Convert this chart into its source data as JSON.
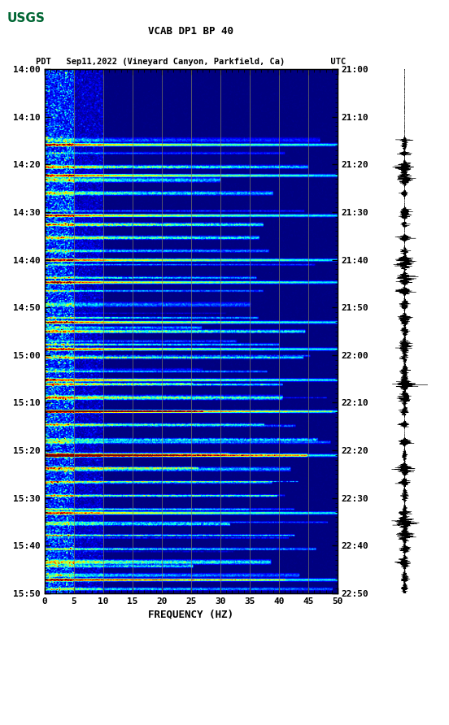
{
  "title_line1": "VCAB DP1 BP 40",
  "title_line2": "PDT   Sep11,2022 (Vineyard Canyon, Parkfield, Ca)         UTC",
  "xlabel": "FREQUENCY (HZ)",
  "freq_min": 0,
  "freq_max": 50,
  "freq_ticks": [
    0,
    5,
    10,
    15,
    20,
    25,
    30,
    35,
    40,
    45,
    50
  ],
  "pdt_ticks": [
    "14:00",
    "14:10",
    "14:20",
    "14:30",
    "14:40",
    "14:50",
    "15:00",
    "15:10",
    "15:20",
    "15:30",
    "15:40",
    "15:50"
  ],
  "utc_ticks": [
    "21:00",
    "21:10",
    "21:20",
    "21:30",
    "21:40",
    "21:50",
    "22:00",
    "22:10",
    "22:20",
    "22:30",
    "22:40",
    "22:50"
  ],
  "background_color": "#ffffff",
  "vline_color": "#808060",
  "vline_positions": [
    5,
    10,
    15,
    20,
    25,
    30,
    35,
    40,
    45
  ],
  "fig_width": 5.52,
  "fig_height": 8.92,
  "usgs_green": "#006633",
  "event_times_min": [
    16,
    19,
    22,
    25,
    28,
    32,
    35,
    38,
    41,
    44,
    47,
    50,
    53,
    56,
    59,
    62,
    65,
    68,
    71,
    74,
    77,
    80,
    84,
    87,
    90,
    93,
    96,
    99,
    102,
    105,
    108,
    111,
    114,
    117
  ],
  "n_time": 800,
  "n_freq": 300,
  "total_minutes": 118
}
